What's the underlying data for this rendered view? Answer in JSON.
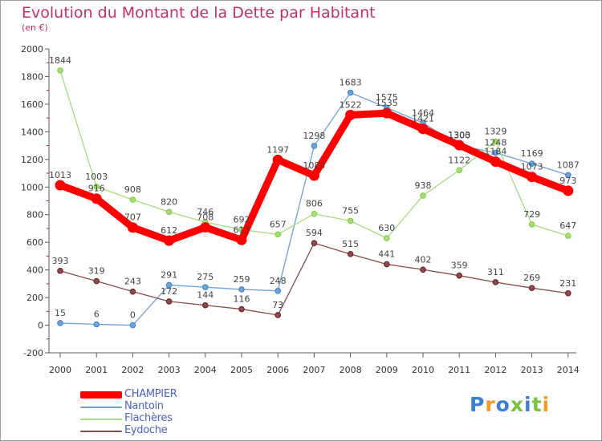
{
  "title": "Evolution du Montant de la Dette par Habitant",
  "subtitle": "(en €)",
  "logo_text": "Proxiti",
  "chart_data": {
    "type": "line",
    "x": [
      "2000",
      "2001",
      "2002",
      "2003",
      "2004",
      "2005",
      "2006",
      "2007",
      "2008",
      "2009",
      "2010",
      "2011",
      "2012",
      "2013",
      "2014"
    ],
    "ylim": [
      -200,
      2000
    ],
    "yticks": [
      -200,
      0,
      200,
      400,
      600,
      800,
      1000,
      1200,
      1400,
      1600,
      1800,
      2000
    ],
    "ytick_labels": [
      "-200",
      "0",
      "200",
      "400",
      "600",
      "800",
      "1000",
      "1200",
      "1400",
      "1600",
      "1800",
      "2000"
    ],
    "grid": false,
    "legend_position": "bottom-left",
    "series": [
      {
        "name": "CHAMPIER",
        "color": "#ff0000",
        "emphasis": true,
        "values": [
          1013,
          916,
          707,
          612,
          708,
          617,
          1197,
          1083,
          1522,
          1535,
          1421,
          1303,
          1184,
          1073,
          973
        ]
      },
      {
        "name": "Nantoin",
        "color": "#6fa0d8",
        "marker": "#3d84c6",
        "values": [
          15,
          6,
          0,
          291,
          275,
          259,
          248,
          1298,
          1683,
          1575,
          1464,
          1300,
          1248,
          1169,
          1087
        ]
      },
      {
        "name": "Flachères",
        "color": "#a6dc7c",
        "marker": "#7ccd3a",
        "values": [
          1844,
          1003,
          908,
          820,
          746,
          692,
          657,
          806,
          755,
          630,
          938,
          1122,
          1329,
          729,
          647
        ]
      },
      {
        "name": "Eydoche",
        "color": "#8c4a4a",
        "marker": "#6b1e1e",
        "values": [
          393,
          319,
          243,
          172,
          144,
          116,
          73,
          594,
          515,
          441,
          402,
          359,
          311,
          269,
          231
        ]
      }
    ]
  },
  "colors": {
    "title": "#c2306a",
    "axis": "#5a5a5a",
    "tick_red": "#ff0000",
    "legend_text": "#4a61c8",
    "logo_letters": [
      "#3f7fd1",
      "#f09b2a",
      "#3f7fd1",
      "#7ac143",
      "#3f7fd1",
      "#7ac143",
      "#f09b2a"
    ]
  }
}
